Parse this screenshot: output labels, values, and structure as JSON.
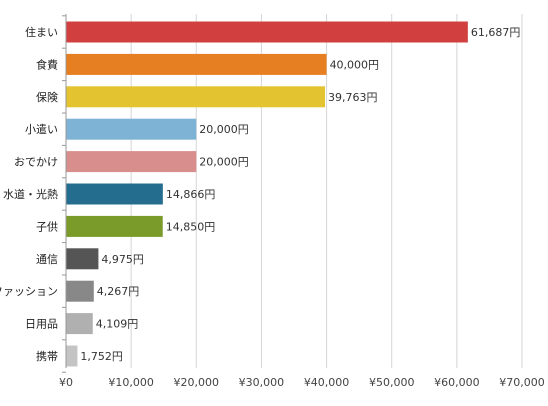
{
  "chart_data": {
    "type": "bar",
    "orientation": "horizontal",
    "title": "",
    "xlabel": "",
    "ylabel": "",
    "categories": [
      "住まい",
      "食費",
      "保険",
      "小遣い",
      "おでかけ",
      "水道・光熱",
      "子供",
      "通信",
      "ファッション",
      "日用品",
      "携帯"
    ],
    "values": [
      61687,
      40000,
      39763,
      20000,
      20000,
      14866,
      14850,
      4975,
      4267,
      4109,
      1752
    ],
    "value_labels": [
      "61,687円",
      "40,000円",
      "39,763円",
      "20,000円",
      "20,000円",
      "14,866円",
      "14,850円",
      "4,975円",
      "4,267円",
      "4,109円",
      "1,752円"
    ],
    "colors": [
      "#d23f3f",
      "#e67e22",
      "#e3c330",
      "#7fb3d5",
      "#d98e8e",
      "#256d8f",
      "#7a9a2a",
      "#555555",
      "#888888",
      "#b0b0b0",
      "#c4c4c4"
    ],
    "xlim": [
      0,
      70000
    ],
    "xticks": [
      0,
      10000,
      20000,
      30000,
      40000,
      50000,
      60000,
      70000
    ],
    "xtick_labels": [
      "¥0",
      "¥10,000",
      "¥20,000",
      "¥30,000",
      "¥40,000",
      "¥50,000",
      "¥60,000",
      "¥70,000"
    ],
    "grid": true,
    "legend": "none"
  }
}
